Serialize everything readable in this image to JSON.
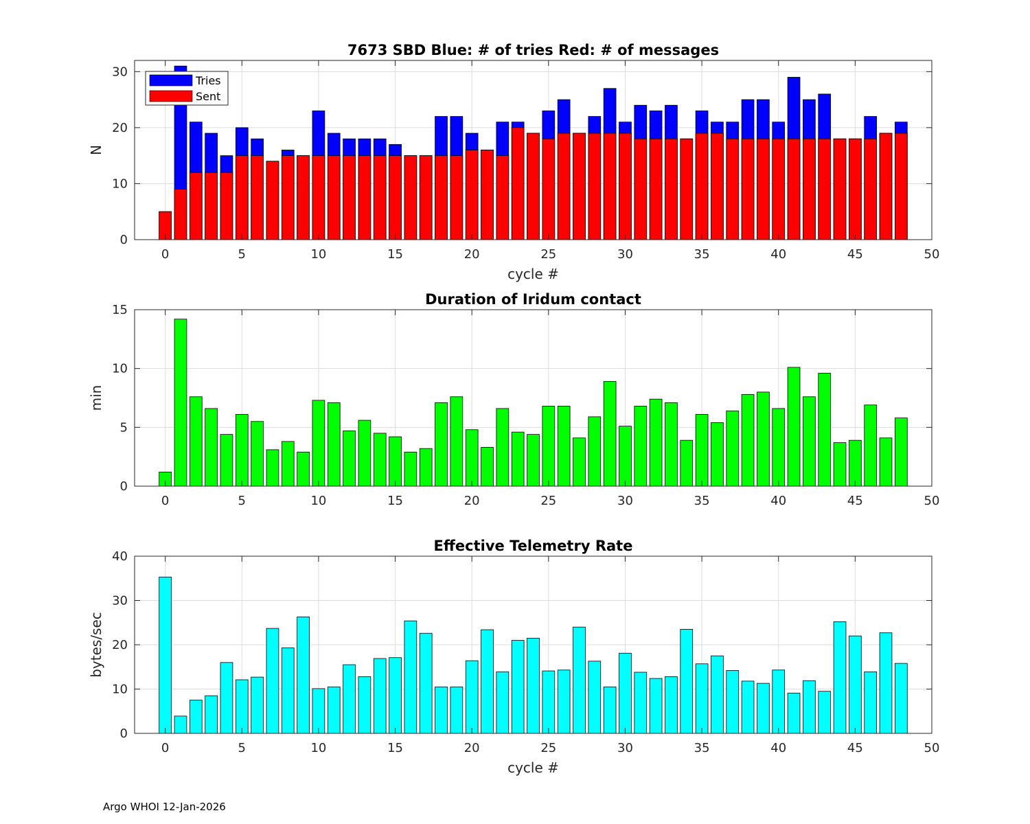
{
  "footer": "Argo WHOI 12-Jan-2026",
  "colors": {
    "tries": "#0000ff",
    "sent": "#ff0000",
    "duration": "#00ff00",
    "rate": "#00ffff",
    "grid": "#dcdcdc"
  },
  "chart_data": [
    {
      "type": "bar",
      "title": "7673 SBD  Blue: # of tries   Red: # of messages",
      "xlabel": "cycle #",
      "ylabel": "N",
      "xlim": [
        -2,
        50
      ],
      "ylim": [
        0,
        32
      ],
      "xticks": [
        0,
        5,
        10,
        15,
        20,
        25,
        30,
        35,
        40,
        45,
        50
      ],
      "yticks": [
        0,
        10,
        20,
        30
      ],
      "grid": true,
      "legend": {
        "placement": "top-left",
        "entries": [
          "Tries",
          "Sent"
        ]
      },
      "x": [
        0,
        1,
        2,
        3,
        4,
        5,
        6,
        7,
        8,
        9,
        10,
        11,
        12,
        13,
        14,
        15,
        16,
        17,
        18,
        19,
        20,
        21,
        22,
        23,
        24,
        25,
        26,
        27,
        28,
        29,
        30,
        31,
        32,
        33,
        34,
        35,
        36,
        37,
        38,
        39,
        40,
        41,
        42,
        43,
        44,
        45,
        46,
        47,
        48
      ],
      "series": [
        {
          "name": "Tries",
          "values": [
            5,
            31,
            21,
            19,
            15,
            20,
            18,
            14,
            16,
            15,
            23,
            19,
            18,
            18,
            18,
            17,
            15,
            15,
            22,
            22,
            19,
            16,
            21,
            21,
            19,
            23,
            25,
            19,
            22,
            27,
            21,
            24,
            23,
            24,
            18,
            23,
            21,
            21,
            25,
            25,
            21,
            29,
            25,
            26,
            18,
            18,
            22,
            19,
            21
          ]
        },
        {
          "name": "Sent",
          "values": [
            5,
            9,
            12,
            12,
            12,
            15,
            15,
            14,
            15,
            15,
            15,
            15,
            15,
            15,
            15,
            15,
            15,
            15,
            15,
            15,
            16,
            16,
            15,
            20,
            19,
            18,
            19,
            19,
            19,
            19,
            19,
            18,
            18,
            18,
            18,
            19,
            19,
            18,
            18,
            18,
            18,
            18,
            18,
            18,
            18,
            18,
            18,
            19,
            19
          ]
        }
      ]
    },
    {
      "type": "bar",
      "title": "Duration of Iridum contact",
      "xlabel": "",
      "ylabel": "min",
      "xlim": [
        -2,
        50
      ],
      "ylim": [
        0,
        15
      ],
      "xticks": [
        0,
        5,
        10,
        15,
        20,
        25,
        30,
        35,
        40,
        45,
        50
      ],
      "yticks": [
        0,
        5,
        10,
        15
      ],
      "grid": true,
      "x": [
        -1,
        0,
        1,
        2,
        3,
        4,
        5,
        6,
        7,
        8,
        9,
        10,
        11,
        12,
        13,
        14,
        15,
        16,
        17,
        18,
        19,
        20,
        21,
        22,
        23,
        24,
        25,
        26,
        27,
        28,
        29,
        30,
        31,
        32,
        33,
        34,
        35,
        36,
        37,
        38,
        39,
        40,
        41,
        42,
        43,
        44,
        45,
        46,
        47,
        48
      ],
      "values": [
        0,
        1.2,
        14.2,
        7.6,
        6.6,
        4.4,
        6.1,
        5.5,
        3.1,
        3.8,
        2.9,
        7.3,
        7.1,
        4.7,
        5.6,
        4.5,
        4.2,
        2.9,
        3.2,
        7.1,
        7.6,
        4.8,
        3.3,
        6.6,
        4.6,
        4.4,
        6.8,
        6.8,
        4.1,
        5.9,
        8.9,
        5.1,
        6.8,
        7.4,
        7.1,
        3.9,
        6.1,
        5.4,
        6.4,
        7.8,
        8.0,
        6.6,
        10.1,
        7.6,
        9.6,
        3.7,
        3.9,
        6.9,
        4.1,
        5.8
      ]
    },
    {
      "type": "bar",
      "title": "Effective Telemetry Rate",
      "xlabel": "cycle #",
      "ylabel": "bytes/sec",
      "xlim": [
        -2,
        50
      ],
      "ylim": [
        0,
        40
      ],
      "xticks": [
        0,
        5,
        10,
        15,
        20,
        25,
        30,
        35,
        40,
        45,
        50
      ],
      "yticks": [
        0,
        10,
        20,
        30,
        40
      ],
      "grid": true,
      "x": [
        0,
        1,
        2,
        3,
        4,
        5,
        6,
        7,
        8,
        9,
        10,
        11,
        12,
        13,
        14,
        15,
        16,
        17,
        18,
        19,
        20,
        21,
        22,
        23,
        24,
        25,
        26,
        27,
        28,
        29,
        30,
        31,
        32,
        33,
        34,
        35,
        36,
        37,
        38,
        39,
        40,
        41,
        42,
        43,
        44,
        45,
        46,
        47,
        48
      ],
      "values": [
        35.3,
        3.9,
        7.5,
        8.5,
        16.0,
        12.1,
        12.7,
        23.7,
        19.3,
        26.3,
        10.1,
        10.5,
        15.5,
        12.8,
        16.9,
        17.1,
        25.4,
        22.6,
        10.5,
        10.5,
        16.4,
        23.4,
        13.9,
        21.0,
        21.5,
        14.1,
        14.3,
        24.0,
        16.3,
        10.5,
        18.1,
        13.8,
        12.4,
        12.8,
        23.5,
        15.7,
        17.5,
        14.2,
        11.8,
        11.3,
        14.3,
        9.1,
        11.9,
        9.5,
        25.2,
        22.0,
        13.9,
        22.7,
        15.8
      ]
    }
  ]
}
